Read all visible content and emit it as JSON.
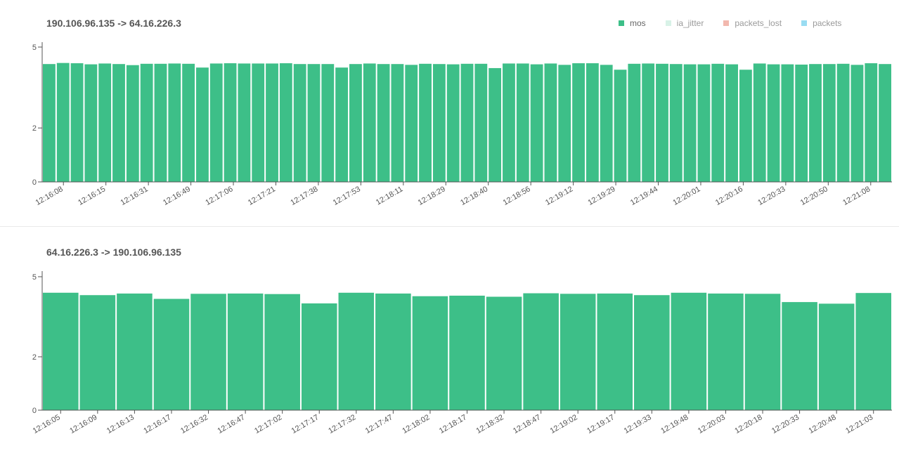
{
  "legend": [
    {
      "label": "mos",
      "color": "#3dbf88",
      "active": true
    },
    {
      "label": "ia_jitter",
      "color": "#d8f2e7",
      "active": false
    },
    {
      "label": "packets_lost",
      "color": "#f2b8ae",
      "active": false
    },
    {
      "label": "packets",
      "color": "#99dcf2",
      "active": false
    }
  ],
  "chart_data": [
    {
      "type": "bar",
      "title": "190.106.96.135 -> 64.16.226.3",
      "series": [
        {
          "name": "mos",
          "color": "#3dbf88",
          "values": [
            4.37,
            4.41,
            4.4,
            4.36,
            4.39,
            4.37,
            4.33,
            4.38,
            4.38,
            4.39,
            4.38,
            4.24,
            4.39,
            4.4,
            4.39,
            4.39,
            4.39,
            4.4,
            4.37,
            4.37,
            4.37,
            4.24,
            4.37,
            4.39,
            4.37,
            4.37,
            4.34,
            4.38,
            4.37,
            4.36,
            4.38,
            4.38,
            4.22,
            4.39,
            4.39,
            4.36,
            4.39,
            4.34,
            4.4,
            4.4,
            4.34,
            4.16,
            4.38,
            4.39,
            4.38,
            4.37,
            4.36,
            4.36,
            4.38,
            4.36,
            4.16,
            4.39,
            4.36,
            4.36,
            4.35,
            4.37,
            4.37,
            4.38,
            4.34,
            4.4,
            4.37
          ]
        }
      ],
      "ticks": [
        "12:16:08",
        "12:16:15",
        "12:16:31",
        "12:16:49",
        "12:17:06",
        "12:17:21",
        "12:17:38",
        "12:17:53",
        "12:18:11",
        "12:18:29",
        "12:18:40",
        "12:18:56",
        "12:19:12",
        "12:19:29",
        "12:19:44",
        "12:20:01",
        "12:20:16",
        "12:20:33",
        "12:20:50",
        "12:21:08"
      ],
      "yticks": [
        0,
        2,
        5
      ],
      "ylim": [
        0,
        5
      ],
      "xlabel": "",
      "ylabel": ""
    },
    {
      "type": "bar",
      "title": "64.16.226.3 -> 190.106.96.135",
      "series": [
        {
          "name": "mos",
          "color": "#3dbf88",
          "values": [
            4.4,
            4.31,
            4.37,
            4.17,
            4.36,
            4.37,
            4.35,
            4.0,
            4.4,
            4.37,
            4.27,
            4.29,
            4.25,
            4.38,
            4.36,
            4.37,
            4.31,
            4.4,
            4.37,
            4.36,
            4.05,
            3.99,
            4.39
          ]
        }
      ],
      "ticks": [
        "12:16:05",
        "12:16:09",
        "12:16:13",
        "12:16:17",
        "12:16:32",
        "12:16:47",
        "12:17:02",
        "12:17:17",
        "12:17:32",
        "12:17:47",
        "12:18:02",
        "12:18:17",
        "12:18:32",
        "12:18:47",
        "12:19:02",
        "12:19:17",
        "12:19:33",
        "12:19:48",
        "12:20:03",
        "12:20:18",
        "12:20:33",
        "12:20:48",
        "12:21:03"
      ],
      "yticks": [
        0,
        2,
        5
      ],
      "ylim": [
        0,
        5
      ],
      "xlabel": "",
      "ylabel": ""
    }
  ]
}
